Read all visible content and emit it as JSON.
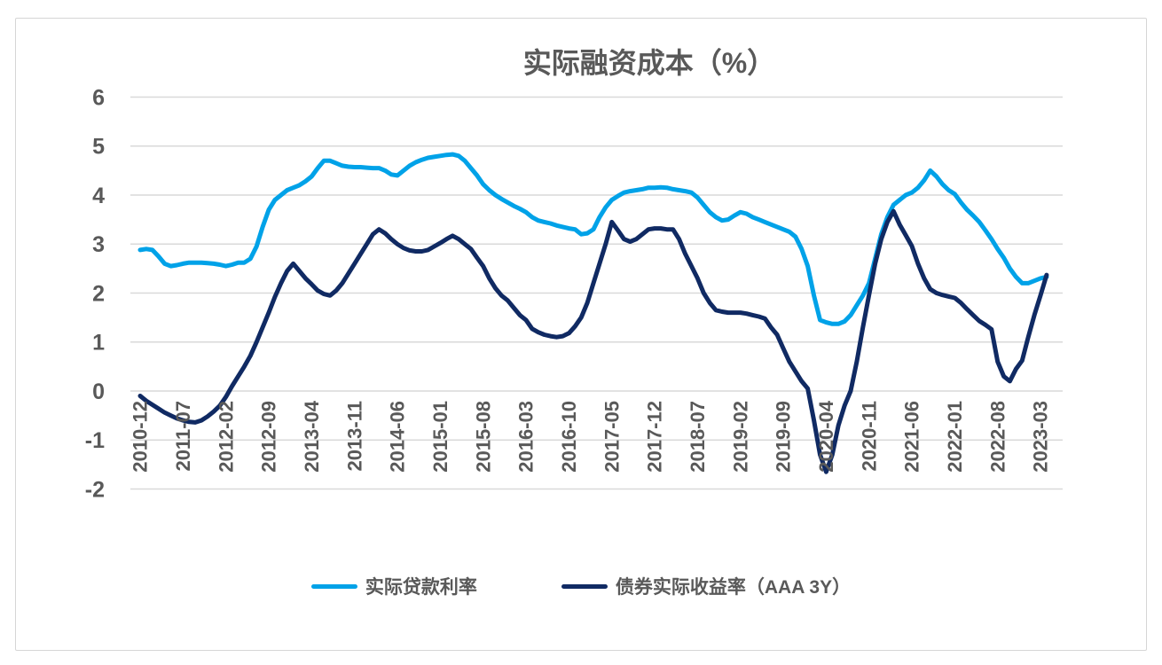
{
  "chart_data": {
    "type": "line",
    "title": "实际融资成本（%）",
    "grid": true,
    "legend_position": "bottom",
    "ylim": [
      -2,
      6
    ],
    "y_tick_labels": [
      "6",
      "5",
      "4",
      "3",
      "2",
      "1",
      "0",
      "-1",
      "-2"
    ],
    "x_tick_labels": [
      "2010-12",
      "2011-07",
      "2012-02",
      "2012-09",
      "2013-04",
      "2013-11",
      "2014-06",
      "2015-01",
      "2015-08",
      "2016-03",
      "2016-10",
      "2017-05",
      "2017-12",
      "2018-07",
      "2019-02",
      "2019-09",
      "2020-04",
      "2020-11",
      "2021-06",
      "2022-01",
      "2022-08",
      "2023-03"
    ],
    "x": [
      "2010-12",
      "2011-01",
      "2011-02",
      "2011-03",
      "2011-04",
      "2011-05",
      "2011-06",
      "2011-07",
      "2011-08",
      "2011-09",
      "2011-10",
      "2011-11",
      "2011-12",
      "2012-01",
      "2012-02",
      "2012-03",
      "2012-04",
      "2012-05",
      "2012-06",
      "2012-07",
      "2012-08",
      "2012-09",
      "2012-10",
      "2012-11",
      "2012-12",
      "2013-01",
      "2013-02",
      "2013-03",
      "2013-04",
      "2013-05",
      "2013-06",
      "2013-07",
      "2013-08",
      "2013-09",
      "2013-10",
      "2013-11",
      "2013-12",
      "2014-01",
      "2014-02",
      "2014-03",
      "2014-04",
      "2014-05",
      "2014-06",
      "2014-07",
      "2014-08",
      "2014-09",
      "2014-10",
      "2014-11",
      "2014-12",
      "2015-01",
      "2015-02",
      "2015-03",
      "2015-04",
      "2015-05",
      "2015-06",
      "2015-07",
      "2015-08",
      "2015-09",
      "2015-10",
      "2015-11",
      "2015-12",
      "2016-01",
      "2016-02",
      "2016-03",
      "2016-04",
      "2016-05",
      "2016-06",
      "2016-07",
      "2016-08",
      "2016-09",
      "2016-10",
      "2016-11",
      "2016-12",
      "2017-01",
      "2017-02",
      "2017-03",
      "2017-04",
      "2017-05",
      "2017-06",
      "2017-07",
      "2017-08",
      "2017-09",
      "2017-10",
      "2017-11",
      "2017-12",
      "2018-01",
      "2018-02",
      "2018-03",
      "2018-04",
      "2018-05",
      "2018-06",
      "2018-07",
      "2018-08",
      "2018-09",
      "2018-10",
      "2018-11",
      "2018-12",
      "2019-01",
      "2019-02",
      "2019-03",
      "2019-04",
      "2019-05",
      "2019-06",
      "2019-07",
      "2019-08",
      "2019-09",
      "2019-10",
      "2019-11",
      "2019-12",
      "2020-01",
      "2020-02",
      "2020-03",
      "2020-04",
      "2020-05",
      "2020-06",
      "2020-07",
      "2020-08",
      "2020-09",
      "2020-10",
      "2020-11",
      "2020-12",
      "2021-01",
      "2021-02",
      "2021-03",
      "2021-04",
      "2021-05",
      "2021-06",
      "2021-07",
      "2021-08",
      "2021-09",
      "2021-10",
      "2021-11",
      "2021-12",
      "2022-01",
      "2022-02",
      "2022-03",
      "2022-04",
      "2022-05",
      "2022-06",
      "2022-07",
      "2022-08",
      "2022-09",
      "2022-10",
      "2022-11",
      "2022-12",
      "2023-01",
      "2023-02",
      "2023-03",
      "2023-04"
    ],
    "series": [
      {
        "name": "实际贷款利率",
        "color": "#00A2E8",
        "values": [
          2.88,
          2.9,
          2.88,
          2.75,
          2.6,
          2.55,
          2.57,
          2.6,
          2.62,
          2.62,
          2.62,
          2.61,
          2.6,
          2.58,
          2.55,
          2.58,
          2.62,
          2.62,
          2.7,
          2.95,
          3.35,
          3.7,
          3.9,
          4.0,
          4.1,
          4.15,
          4.2,
          4.28,
          4.38,
          4.55,
          4.7,
          4.7,
          4.65,
          4.6,
          4.58,
          4.57,
          4.57,
          4.56,
          4.55,
          4.55,
          4.5,
          4.42,
          4.4,
          4.5,
          4.6,
          4.67,
          4.72,
          4.76,
          4.78,
          4.8,
          4.82,
          4.83,
          4.8,
          4.7,
          4.55,
          4.4,
          4.22,
          4.1,
          4.0,
          3.92,
          3.85,
          3.78,
          3.72,
          3.65,
          3.55,
          3.48,
          3.45,
          3.42,
          3.38,
          3.35,
          3.32,
          3.3,
          3.2,
          3.22,
          3.3,
          3.55,
          3.75,
          3.9,
          3.98,
          4.05,
          4.08,
          4.1,
          4.12,
          4.15,
          4.15,
          4.16,
          4.15,
          4.12,
          4.1,
          4.08,
          4.05,
          3.95,
          3.8,
          3.65,
          3.55,
          3.48,
          3.5,
          3.58,
          3.65,
          3.62,
          3.55,
          3.5,
          3.45,
          3.4,
          3.35,
          3.3,
          3.25,
          3.15,
          2.9,
          2.55,
          1.95,
          1.45,
          1.4,
          1.37,
          1.37,
          1.42,
          1.55,
          1.75,
          1.95,
          2.2,
          2.7,
          3.2,
          3.55,
          3.8,
          3.9,
          4.0,
          4.05,
          4.15,
          4.3,
          4.5,
          4.38,
          4.22,
          4.1,
          4.02,
          3.85,
          3.7,
          3.58,
          3.45,
          3.28,
          3.1,
          2.9,
          2.72,
          2.5,
          2.33,
          2.2,
          2.2,
          2.25,
          2.3,
          2.33
        ]
      },
      {
        "name": "债券实际收益率（AAA 3Y）",
        "color": "#102A63",
        "values": [
          -0.1,
          -0.2,
          -0.28,
          -0.36,
          -0.44,
          -0.5,
          -0.56,
          -0.6,
          -0.63,
          -0.64,
          -0.6,
          -0.52,
          -0.42,
          -0.3,
          -0.12,
          0.1,
          0.3,
          0.5,
          0.72,
          1.0,
          1.3,
          1.6,
          1.92,
          2.2,
          2.45,
          2.6,
          2.45,
          2.3,
          2.18,
          2.05,
          1.98,
          1.95,
          2.05,
          2.2,
          2.4,
          2.6,
          2.8,
          3.0,
          3.2,
          3.3,
          3.22,
          3.1,
          3.0,
          2.92,
          2.87,
          2.85,
          2.85,
          2.88,
          2.95,
          3.02,
          3.1,
          3.17,
          3.1,
          3.0,
          2.9,
          2.72,
          2.55,
          2.3,
          2.1,
          1.95,
          1.85,
          1.7,
          1.55,
          1.45,
          1.27,
          1.2,
          1.15,
          1.12,
          1.1,
          1.12,
          1.18,
          1.32,
          1.5,
          1.8,
          2.2,
          2.6,
          3.0,
          3.45,
          3.28,
          3.1,
          3.05,
          3.1,
          3.2,
          3.3,
          3.32,
          3.32,
          3.3,
          3.3,
          3.1,
          2.8,
          2.55,
          2.3,
          2.0,
          1.8,
          1.65,
          1.62,
          1.6,
          1.6,
          1.6,
          1.58,
          1.55,
          1.52,
          1.48,
          1.3,
          1.15,
          0.87,
          0.6,
          0.4,
          0.2,
          0.05,
          -0.6,
          -1.3,
          -1.65,
          -1.3,
          -0.7,
          -0.3,
          0.0,
          0.6,
          1.3,
          1.96,
          2.6,
          3.1,
          3.45,
          3.67,
          3.4,
          3.18,
          2.96,
          2.6,
          2.3,
          2.08,
          2.0,
          1.96,
          1.93,
          1.9,
          1.8,
          1.67,
          1.55,
          1.43,
          1.35,
          1.26,
          0.6,
          0.3,
          0.2,
          0.45,
          0.62,
          1.1,
          1.55,
          1.95,
          2.37
        ]
      }
    ],
    "style": {
      "text_color": "#595959",
      "gridline_color": "#D9D9D9",
      "background": "#FFFFFF",
      "border_color": "#D6D6D6",
      "line_width": 5
    }
  }
}
